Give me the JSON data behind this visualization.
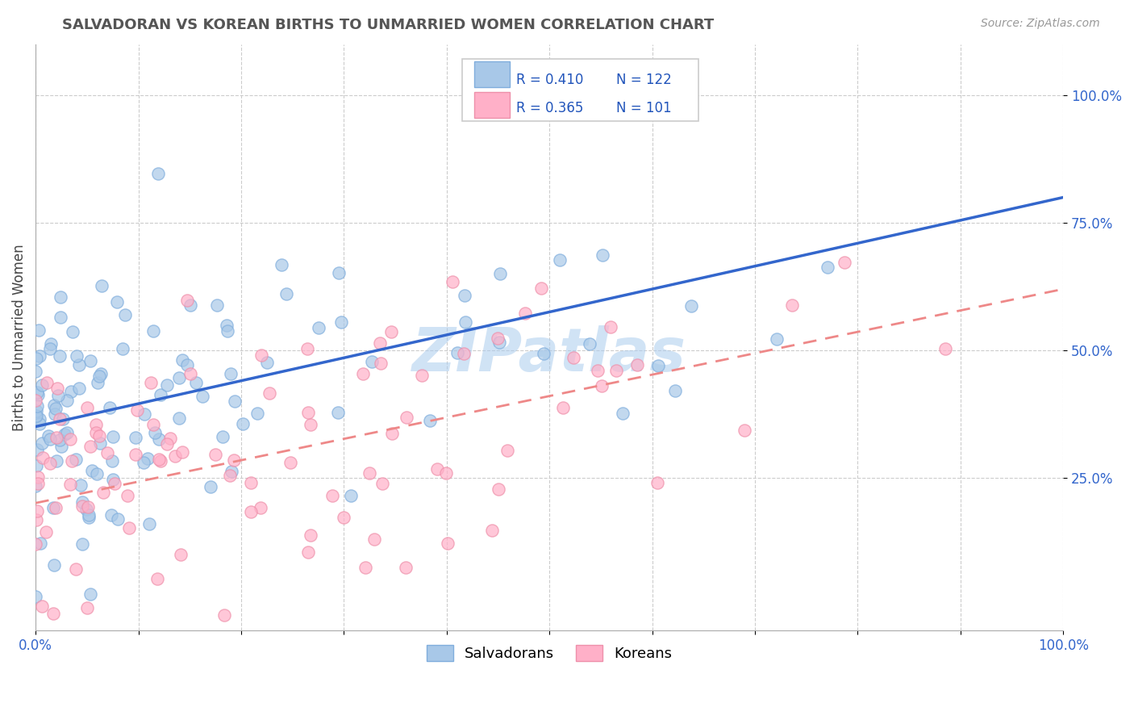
{
  "title": "SALVADORAN VS KOREAN BIRTHS TO UNMARRIED WOMEN CORRELATION CHART",
  "source_text": "Source: ZipAtlas.com",
  "ylabel": "Births to Unmarried Women",
  "xlim": [
    0.0,
    1.0
  ],
  "ylim": [
    -0.05,
    1.1
  ],
  "yticks": [
    0.25,
    0.5,
    0.75,
    1.0
  ],
  "ytick_labels": [
    "25.0%",
    "50.0%",
    "75.0%",
    "100.0%"
  ],
  "xticks": [
    0.0,
    0.1,
    0.2,
    0.3,
    0.4,
    0.5,
    0.6,
    0.7,
    0.8,
    0.9,
    1.0
  ],
  "xtick_labels": [
    "0.0%",
    "",
    "",
    "",
    "",
    "",
    "",
    "",
    "",
    "",
    "100.0%"
  ],
  "salvadoran_color": "#A8C8E8",
  "salvadoran_edge": "#80AEDD",
  "korean_color": "#FFB0C8",
  "korean_edge": "#EE90AA",
  "trend_blue_color": "#3366CC",
  "trend_pink_color": "#EE8888",
  "watermark": "ZIPatlas",
  "watermark_color": "#AACCEE",
  "background_color": "#FFFFFF",
  "grid_color": "#CCCCCC",
  "title_color": "#555555",
  "legend_R_color": "#2255BB",
  "salvadoran_R": 0.41,
  "salvadoran_N": 122,
  "korean_R": 0.365,
  "korean_N": 101,
  "trend_blue_y0": 0.35,
  "trend_blue_y1": 0.8,
  "trend_pink_y0": 0.2,
  "trend_pink_y1": 0.62
}
